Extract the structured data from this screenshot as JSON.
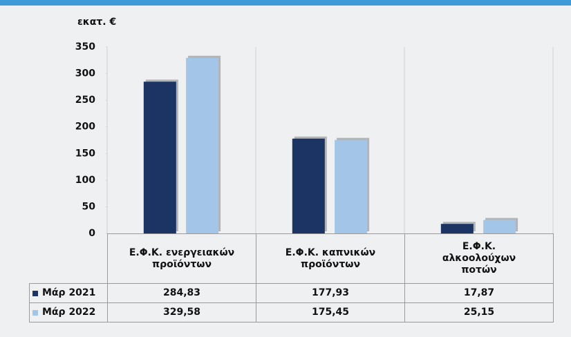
{
  "chart_data": {
    "type": "bar",
    "y_label": "εκατ. €",
    "categories": [
      "Ε.Φ.Κ. ενεργειακών προϊόντων",
      "Ε.Φ.Κ. καπνικών προϊόντων",
      "Ε.Φ.Κ. αλκοολούχων ποτών"
    ],
    "series": [
      {
        "name": "Μάρ 2021",
        "color": "#1b3463",
        "values": [
          284.83,
          177.93,
          17.87
        ],
        "value_labels": [
          "284,83",
          "177,93",
          "17,87"
        ]
      },
      {
        "name": "Μάρ 2022",
        "color": "#a3c6e8",
        "values": [
          329.58,
          175.45,
          25.15
        ],
        "value_labels": [
          "329,58",
          "175,45",
          "25,15"
        ]
      }
    ],
    "ylim": [
      0,
      350
    ],
    "yticks": [
      0,
      50,
      100,
      150,
      200,
      250,
      300,
      350
    ]
  }
}
